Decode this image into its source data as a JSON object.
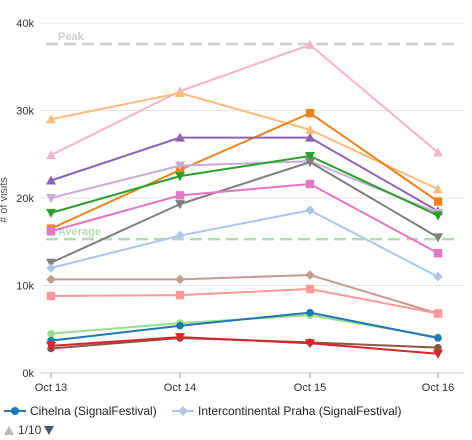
{
  "chart_data": {
    "type": "line",
    "categories": [
      "Oct 13",
      "Oct 14",
      "Oct 15",
      "Oct 16"
    ],
    "ylabel": "# of visits",
    "ylim": [
      0,
      40000
    ],
    "yticks": [
      0,
      10000,
      20000,
      30000,
      40000
    ],
    "ytick_labels": [
      "0k",
      "10k",
      "20k",
      "30k",
      "40k"
    ],
    "grid": true,
    "reference_lines": [
      {
        "label": "Peak",
        "value": 37600,
        "color": "#d0d0d0"
      },
      {
        "label": "Average",
        "value": 15300,
        "color": "#b5dcb5"
      }
    ],
    "series": [
      {
        "name": "",
        "color": "#f5b3cd",
        "marker": "triangle",
        "values": [
          24900,
          32200,
          37500,
          25200
        ]
      },
      {
        "name": "",
        "color": "#fbbd7c",
        "marker": "triangle",
        "values": [
          29000,
          32000,
          27800,
          21000
        ]
      },
      {
        "name": "",
        "color": "#f0821c",
        "marker": "square",
        "values": [
          16500,
          23200,
          29700,
          19600
        ]
      },
      {
        "name": "",
        "color": "#8e63b5",
        "marker": "triangle",
        "values": [
          22000,
          26900,
          26900,
          18500
        ]
      },
      {
        "name": "",
        "color": "#c5afd6",
        "marker": "triangle-down",
        "values": [
          20000,
          23700,
          24200,
          18300
        ]
      },
      {
        "name": "",
        "color": "#2ca02c",
        "marker": "triangle-down",
        "values": [
          18300,
          22500,
          24800,
          18000
        ]
      },
      {
        "name": "",
        "color": "#7f7f7f",
        "marker": "triangle-down",
        "values": [
          12600,
          19300,
          24100,
          15500
        ]
      },
      {
        "name": "",
        "color": "#e377c2",
        "marker": "square",
        "values": [
          16200,
          20300,
          21600,
          13700
        ]
      },
      {
        "name": "Intercontinental Praha (SignalFestival)",
        "color": "#aec7e8",
        "marker": "diamond",
        "values": [
          12000,
          15700,
          18600,
          11000
        ]
      },
      {
        "name": "",
        "color": "#c49c94",
        "marker": "diamond",
        "values": [
          10700,
          10700,
          11200,
          6800
        ]
      },
      {
        "name": "",
        "color": "#ff9896",
        "marker": "square",
        "values": [
          8800,
          8900,
          9600,
          6800
        ]
      },
      {
        "name": "",
        "color": "#98df8a",
        "marker": "circle",
        "values": [
          4500,
          5700,
          6600,
          4100
        ]
      },
      {
        "name": "Cihelna (SignalFestival)",
        "color": "#1f77b4",
        "marker": "circle",
        "values": [
          3700,
          5400,
          6900,
          4000
        ]
      },
      {
        "name": "",
        "color": "#8c564b",
        "marker": "circle",
        "values": [
          2800,
          4000,
          3500,
          2900
        ]
      },
      {
        "name": "",
        "color": "#d62728",
        "marker": "triangle-down",
        "values": [
          3100,
          4100,
          3400,
          2200
        ]
      }
    ]
  },
  "legend": {
    "items": [
      {
        "label": "Cihelna (SignalFestival)",
        "color": "#1f77b4",
        "marker": "circle"
      },
      {
        "label": "Intercontinental Praha (SignalFestival)",
        "color": "#aec7e8",
        "marker": "diamond"
      }
    ]
  },
  "pager": {
    "label": "1/10"
  }
}
